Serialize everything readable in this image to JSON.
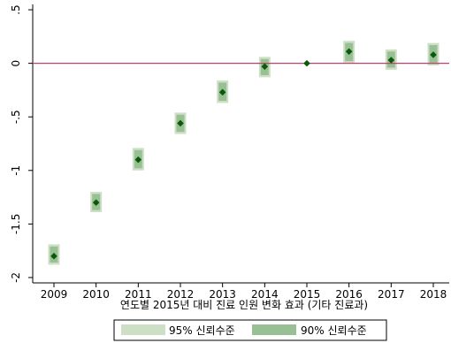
{
  "chart_data": {
    "type": "scatter",
    "title": "",
    "xlabel": "연도별 2015년 대비 진료 인원 변화 효과 (기타 진료과)",
    "ylabel": "",
    "x": [
      2009,
      2010,
      2011,
      2012,
      2013,
      2014,
      2015,
      2016,
      2017,
      2018
    ],
    "x_tick_labels": [
      "2009",
      "2010",
      "2011",
      "2012",
      "2013",
      "2014",
      "2015",
      "2016",
      "2017",
      "2018"
    ],
    "ylim": [
      -2.05,
      0.55
    ],
    "y_ticks": [
      0.5,
      0,
      -0.5,
      -1,
      -1.5,
      -2
    ],
    "y_tick_labels": [
      ".5",
      "0",
      "-.5",
      "-1",
      "-1.5",
      "-2"
    ],
    "reference_line": {
      "y": 0,
      "color": "#c04070"
    },
    "series": [
      {
        "name": "point estimate",
        "marker": "diamond",
        "color": "#0a5a0a",
        "values": [
          -1.8,
          -1.3,
          -0.9,
          -0.56,
          -0.27,
          -0.03,
          0.0,
          0.11,
          0.03,
          0.08
        ]
      }
    ],
    "ci95": [
      [
        -1.88,
        -1.69
      ],
      [
        -1.39,
        -1.2
      ],
      [
        -1.0,
        -0.79
      ],
      [
        -0.66,
        -0.46
      ],
      [
        -0.37,
        -0.16
      ],
      [
        -0.13,
        0.06
      ],
      null,
      [
        0.0,
        0.21
      ],
      [
        -0.06,
        0.13
      ],
      [
        -0.02,
        0.19
      ]
    ],
    "ci90": [
      [
        -1.86,
        -1.71
      ],
      [
        -1.37,
        -1.22
      ],
      [
        -0.98,
        -0.81
      ],
      [
        -0.64,
        -0.48
      ],
      [
        -0.35,
        -0.18
      ],
      [
        -0.11,
        0.04
      ],
      null,
      [
        0.02,
        0.19
      ],
      [
        -0.04,
        0.11
      ],
      [
        0.0,
        0.17
      ]
    ],
    "colors": {
      "ci95": "#cde0c6",
      "ci90": "#99c095",
      "marker": "#0a5a0a",
      "refline": "#c04070"
    },
    "grid": false,
    "legend": {
      "position": "bottom",
      "items": [
        {
          "label": "95% 신뢰수준",
          "color": "#cde0c6"
        },
        {
          "label": "90% 신뢰수준",
          "color": "#99c095"
        }
      ]
    }
  }
}
